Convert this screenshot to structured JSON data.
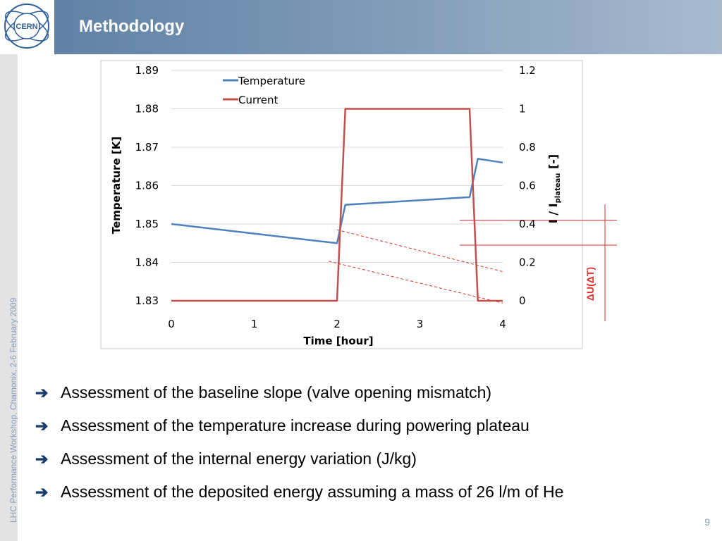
{
  "slide": {
    "title": "Methodology",
    "side_text": "LHC Performance Workshop, Chamonix, 2-6 February 2009",
    "page_number": "9",
    "logo_text": "CERN",
    "annotation": "ΔU(ΔT)",
    "bullets": [
      "Assessment of the baseline slope (valve opening mismatch)",
      "Assessment of the temperature increase during powering plateau",
      "Assessment of the internal energy variation (J/kg)",
      "Assessment of the deposited energy assuming a mass of 26 l/m of He"
    ],
    "bullet_arrow": "➔"
  },
  "colors": {
    "temperature": "#4f81bd",
    "current": "#c0504d",
    "annotation": "#e03030",
    "header_start": "#5c7ea2",
    "header_end": "#a8bacd"
  },
  "chart_data": {
    "type": "line",
    "xlabel": "Time [hour]",
    "ylabel": "Temperature [K]",
    "y2label_main": "I / I",
    "y2label_sub": "plateau",
    "y2label_suffix": " [-]",
    "xlim": [
      0,
      4
    ],
    "ylim": [
      1.83,
      1.89
    ],
    "y2lim": [
      0,
      1.2
    ],
    "x_ticks": [
      "0",
      "1",
      "2",
      "3",
      "4"
    ],
    "y_ticks": [
      "1.83",
      "1.84",
      "1.85",
      "1.86",
      "1.87",
      "1.88",
      "1.89"
    ],
    "y2_ticks": [
      "0",
      "0.2",
      "0.4",
      "0.6",
      "0.8",
      "1",
      "1.2"
    ],
    "legend_position": "top-left",
    "series": [
      {
        "name": "Temperature",
        "axis": "left",
        "x": [
          0,
          2.0,
          2.1,
          3.6,
          3.7,
          4.0
        ],
        "y": [
          1.85,
          1.845,
          1.855,
          1.857,
          1.867,
          1.866
        ]
      },
      {
        "name": "Current",
        "axis": "right",
        "x": [
          0,
          2.0,
          2.1,
          3.6,
          3.7,
          4.0
        ],
        "y": [
          0,
          0,
          1,
          1,
          0,
          0
        ]
      }
    ],
    "dashed_lines": [
      {
        "x": [
          2.0,
          4.0
        ],
        "y": [
          1.8485,
          1.8376
        ]
      },
      {
        "x": [
          1.9,
          4.0
        ],
        "y": [
          1.8403,
          1.8294
        ]
      }
    ],
    "reference_lines": [
      {
        "y2": 0.42
      },
      {
        "y2": 0.29
      }
    ]
  }
}
